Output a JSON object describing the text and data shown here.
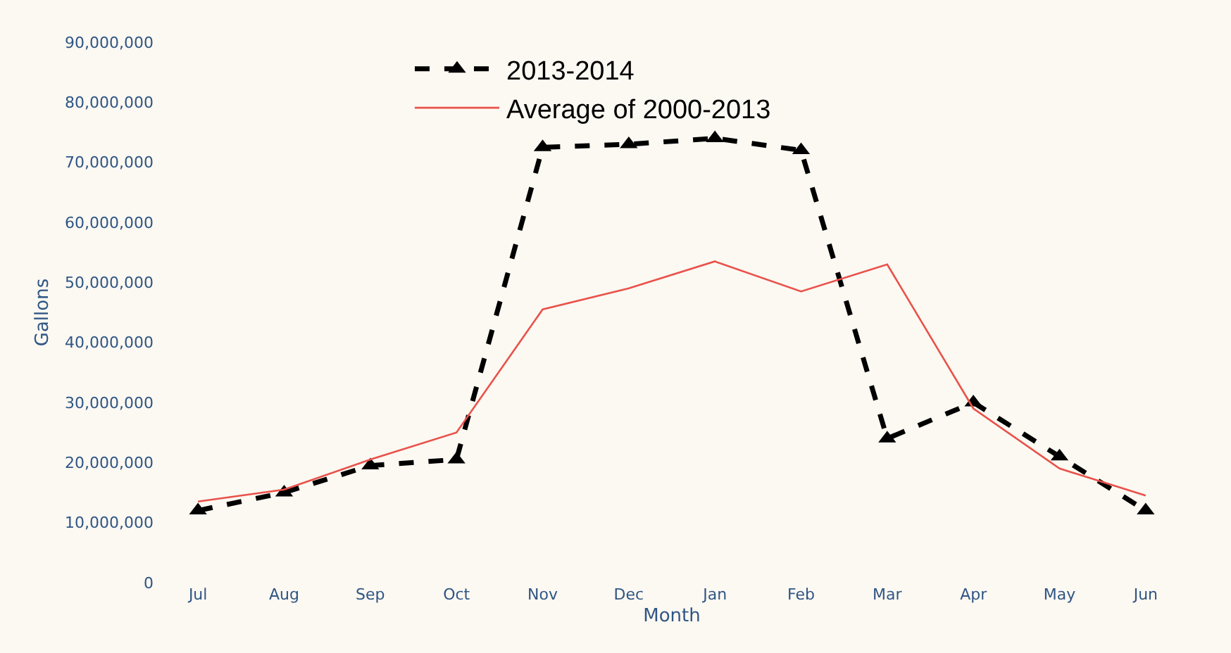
{
  "chart_data": {
    "type": "line",
    "xlabel": "Month",
    "ylabel": "Gallons",
    "categories": [
      "Jul",
      "Aug",
      "Sep",
      "Oct",
      "Nov",
      "Dec",
      "Jan",
      "Feb",
      "Mar",
      "Apr",
      "May",
      "Jun"
    ],
    "series": [
      {
        "name": "2013-2014",
        "color": "#000000",
        "line_style": "dashed",
        "marker": "triangle",
        "values": [
          12000000,
          15000000,
          19500000,
          20500000,
          72500000,
          73000000,
          74000000,
          72000000,
          24000000,
          30000000,
          21000000,
          12000000
        ]
      },
      {
        "name": "Average of 2000-2013",
        "color": "#e8524a",
        "line_style": "solid",
        "marker": "none",
        "values": [
          13500000,
          15500000,
          20500000,
          25000000,
          45500000,
          49000000,
          53500000,
          48500000,
          53000000,
          29000000,
          19000000,
          14500000
        ]
      }
    ],
    "ylim": [
      0,
      90000000
    ],
    "yticks": [
      {
        "value": 0,
        "label": "0"
      },
      {
        "value": 10000000,
        "label": "10,000,000"
      },
      {
        "value": 20000000,
        "label": "20,000,000"
      },
      {
        "value": 30000000,
        "label": "30,000,000"
      },
      {
        "value": 40000000,
        "label": "40,000,000"
      },
      {
        "value": 50000000,
        "label": "50,000,000"
      },
      {
        "value": 60000000,
        "label": "60,000,000"
      },
      {
        "value": 70000000,
        "label": "70,000,000"
      },
      {
        "value": 80000000,
        "label": "80,000,000"
      },
      {
        "value": 90000000,
        "label": "90,000,000"
      }
    ],
    "grid": false,
    "legend": "top"
  }
}
